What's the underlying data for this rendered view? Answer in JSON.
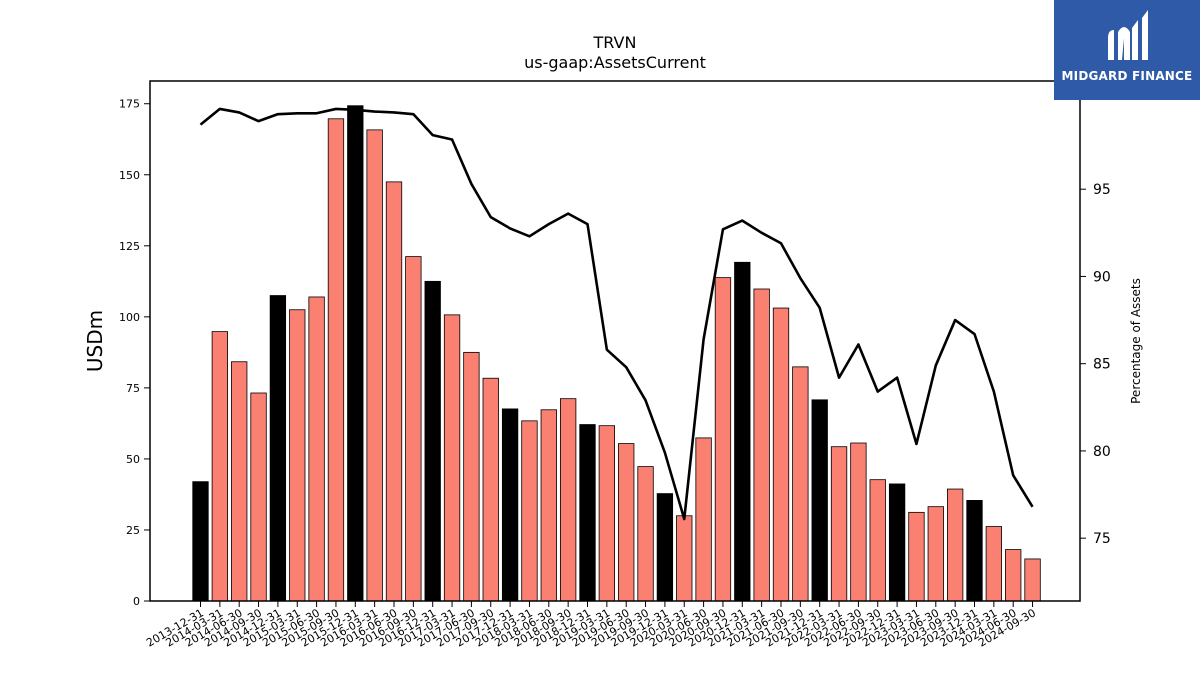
{
  "brand": {
    "name": "MIDGARD FINANCE",
    "bg_color": "#2f5aa8"
  },
  "chart_data": {
    "type": "bar",
    "title": "TRVN",
    "subtitle": "us-gaap:AssetsCurrent",
    "ylabel": "USDm",
    "y2label": "Percentage of Assets",
    "ylim": [
      0,
      183
    ],
    "y2lim": [
      71.4,
      101.2
    ],
    "yticks": [
      0,
      25,
      50,
      75,
      100,
      125,
      150,
      175
    ],
    "y2ticks": [
      75,
      80,
      85,
      90,
      95
    ],
    "grid": false,
    "bar_colors": {
      "year_end": "#000000",
      "quarter": "#fa8072"
    },
    "line_color": "#000000",
    "categories": [
      "2013-12-31",
      "2014-03-31",
      "2014-06-30",
      "2014-09-30",
      "2014-12-31",
      "2015-03-31",
      "2015-06-30",
      "2015-09-30",
      "2015-12-31",
      "2016-03-31",
      "2016-06-30",
      "2016-09-30",
      "2016-12-31",
      "2017-03-31",
      "2017-06-30",
      "2017-09-30",
      "2017-12-31",
      "2018-03-31",
      "2018-06-30",
      "2018-09-30",
      "2018-12-31",
      "2019-03-31",
      "2019-06-30",
      "2019-09-30",
      "2019-12-31",
      "2020-03-31",
      "2020-06-30",
      "2020-09-30",
      "2020-12-31",
      "2021-03-31",
      "2021-06-30",
      "2021-09-30",
      "2021-12-31",
      "2022-03-31",
      "2022-06-30",
      "2022-09-30",
      "2022-12-31",
      "2023-03-31",
      "2023-06-30",
      "2023-09-30",
      "2023-12-31",
      "2024-03-31",
      "2024-06-30",
      "2024-09-30"
    ],
    "series": [
      {
        "type": "bar",
        "values": [
          42,
          94.8,
          84.2,
          73.2,
          107.5,
          102.5,
          107,
          169.7,
          174.3,
          165.8,
          147.5,
          121.2,
          112.5,
          100.7,
          87.5,
          78.4,
          67.6,
          63.4,
          67.3,
          71.2,
          62.1,
          61.7,
          55.4,
          47.3,
          37.8,
          30,
          57.4,
          113.8,
          119.2,
          109.8,
          103.1,
          82.4,
          70.8,
          54.3,
          55.6,
          42.7,
          41.2,
          31.2,
          33.2,
          39.4,
          35.4,
          26.2,
          18.1,
          14.8
        ]
      },
      {
        "type": "line",
        "axis": "right",
        "values": [
          98.7,
          99.6,
          99.4,
          98.9,
          99.3,
          99.35,
          99.35,
          99.6,
          99.55,
          99.45,
          99.4,
          99.3,
          98.1,
          97.85,
          95.3,
          93.4,
          92.75,
          92.3,
          93.0,
          93.6,
          93.0,
          85.8,
          84.8,
          82.9,
          79.9,
          76.1,
          86.4,
          92.7,
          93.2,
          92.5,
          91.9,
          89.9,
          88.2,
          84.2,
          86.1,
          83.4,
          84.2,
          80.4,
          84.9,
          87.5,
          86.7,
          83.4,
          78.6,
          76.8
        ]
      }
    ]
  }
}
